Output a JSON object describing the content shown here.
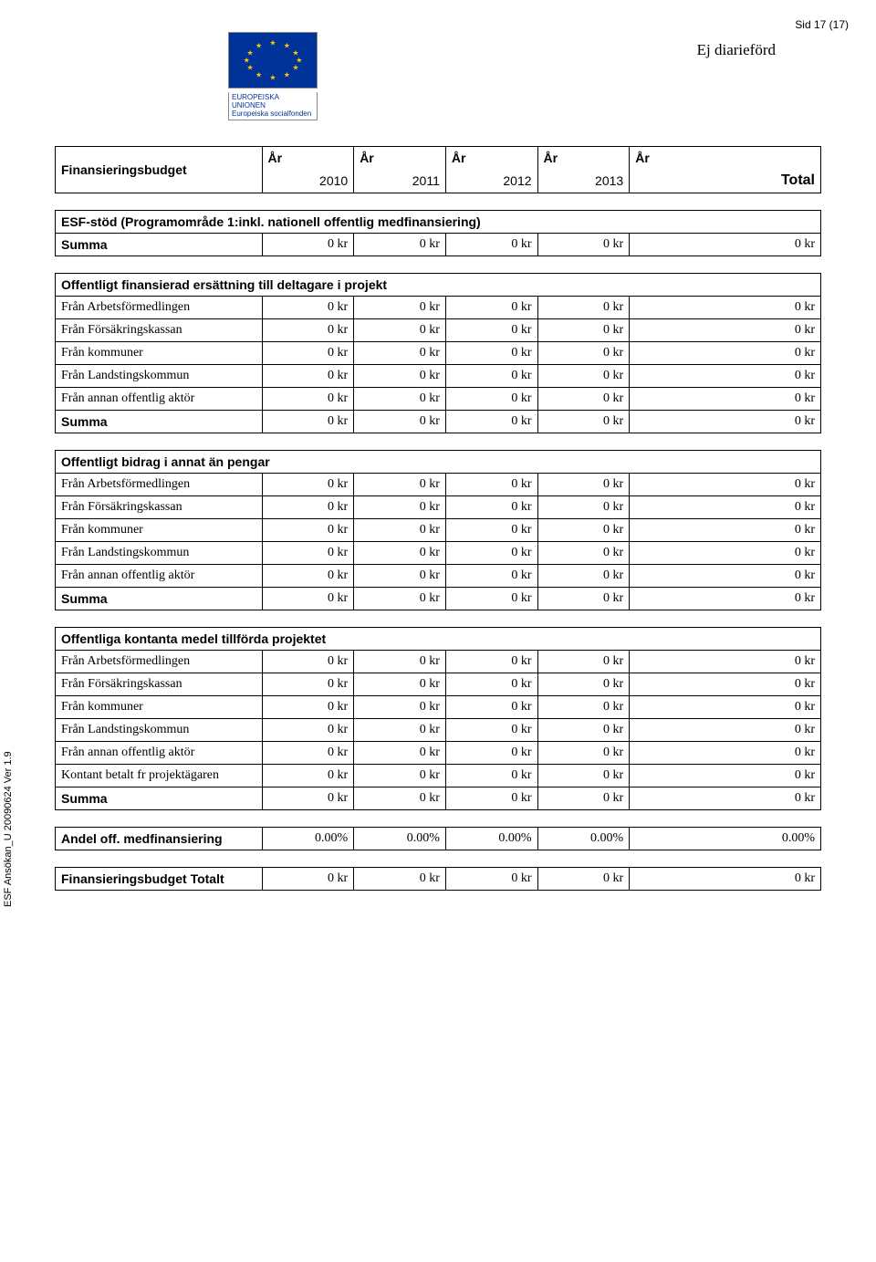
{
  "page_info": {
    "page_number": "Sid 17 (17)",
    "diar": "Ej diarieförd"
  },
  "logo": {
    "line1": "EUROPEISKA UNIONEN",
    "line2": "Europeiska socialfonden"
  },
  "header_table": {
    "title": "Finansieringsbudget",
    "year_label": "År",
    "years": [
      "2010",
      "2011",
      "2012",
      "2013"
    ],
    "total_label": "Total"
  },
  "section1": {
    "title": "ESF-stöd (Programområde 1:inkl. nationell offentlig medfinansiering)",
    "summa_label": "Summa",
    "summa": [
      "0 kr",
      "0 kr",
      "0 kr",
      "0 kr",
      "0 kr"
    ]
  },
  "section2": {
    "title": "Offentligt finansierad ersättning till deltagare i projekt",
    "rows": [
      {
        "label": "Från Arbetsförmedlingen",
        "v": [
          "0 kr",
          "0 kr",
          "0 kr",
          "0 kr",
          "0 kr"
        ]
      },
      {
        "label": "Från Försäkringskassan",
        "v": [
          "0 kr",
          "0 kr",
          "0 kr",
          "0 kr",
          "0 kr"
        ]
      },
      {
        "label": "Från kommuner",
        "v": [
          "0 kr",
          "0 kr",
          "0 kr",
          "0 kr",
          "0 kr"
        ]
      },
      {
        "label": "Från Landstingskommun",
        "v": [
          "0 kr",
          "0 kr",
          "0 kr",
          "0 kr",
          "0 kr"
        ]
      },
      {
        "label": "Från annan offentlig aktör",
        "v": [
          "0 kr",
          "0 kr",
          "0 kr",
          "0 kr",
          "0 kr"
        ]
      }
    ],
    "summa_label": "Summa",
    "summa": [
      "0 kr",
      "0 kr",
      "0 kr",
      "0 kr",
      "0 kr"
    ]
  },
  "section3": {
    "title": "Offentligt bidrag i annat än pengar",
    "rows": [
      {
        "label": "Från Arbetsförmedlingen",
        "v": [
          "0 kr",
          "0 kr",
          "0 kr",
          "0 kr",
          "0 kr"
        ]
      },
      {
        "label": "Från Försäkringskassan",
        "v": [
          "0 kr",
          "0 kr",
          "0 kr",
          "0 kr",
          "0 kr"
        ]
      },
      {
        "label": "Från kommuner",
        "v": [
          "0 kr",
          "0 kr",
          "0 kr",
          "0 kr",
          "0 kr"
        ]
      },
      {
        "label": "Från Landstingskommun",
        "v": [
          "0 kr",
          "0 kr",
          "0 kr",
          "0 kr",
          "0 kr"
        ]
      },
      {
        "label": "Från annan offentlig aktör",
        "v": [
          "0 kr",
          "0 kr",
          "0 kr",
          "0 kr",
          "0 kr"
        ]
      }
    ],
    "summa_label": "Summa",
    "summa": [
      "0 kr",
      "0 kr",
      "0 kr",
      "0 kr",
      "0 kr"
    ]
  },
  "section4": {
    "title": "Offentliga kontanta medel tillförda projektet",
    "rows": [
      {
        "label": "Från Arbetsförmedlingen",
        "v": [
          "0 kr",
          "0 kr",
          "0 kr",
          "0 kr",
          "0 kr"
        ]
      },
      {
        "label": "Från Försäkringskassan",
        "v": [
          "0 kr",
          "0 kr",
          "0 kr",
          "0 kr",
          "0 kr"
        ]
      },
      {
        "label": "Från kommuner",
        "v": [
          "0 kr",
          "0 kr",
          "0 kr",
          "0 kr",
          "0 kr"
        ]
      },
      {
        "label": "Från Landstingskommun",
        "v": [
          "0 kr",
          "0 kr",
          "0 kr",
          "0 kr",
          "0 kr"
        ]
      },
      {
        "label": "Från annan offentlig aktör",
        "v": [
          "0 kr",
          "0 kr",
          "0 kr",
          "0 kr",
          "0 kr"
        ]
      },
      {
        "label": "Kontant betalt fr projektägaren",
        "v": [
          "0 kr",
          "0 kr",
          "0 kr",
          "0 kr",
          "0 kr"
        ]
      }
    ],
    "summa_label": "Summa",
    "summa": [
      "0 kr",
      "0 kr",
      "0 kr",
      "0 kr",
      "0 kr"
    ]
  },
  "section5": {
    "label": "Andel off. medfinansiering",
    "v": [
      "0.00%",
      "0.00%",
      "0.00%",
      "0.00%",
      "0.00%"
    ]
  },
  "section6": {
    "label": "Finansieringsbudget Totalt",
    "v": [
      "0 kr",
      "0 kr",
      "0 kr",
      "0 kr",
      "0 kr"
    ]
  },
  "footer": "ESF Ansökan_U 20090624 Ver 1.9"
}
